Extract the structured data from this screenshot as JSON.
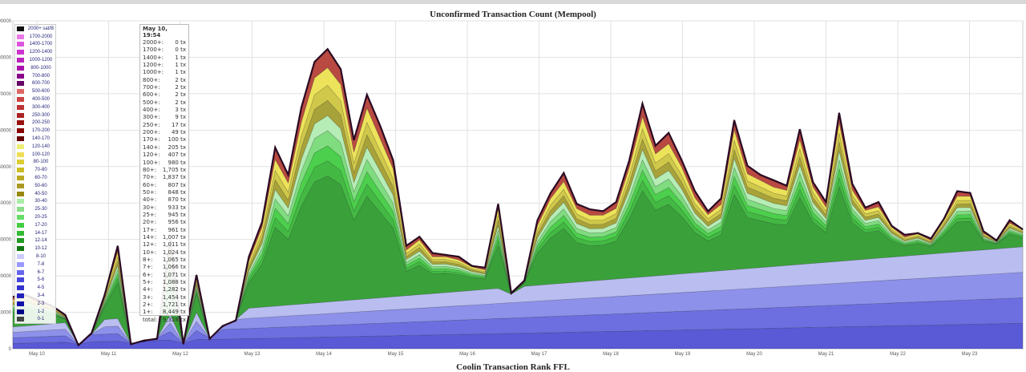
{
  "chart_data": {
    "type": "area",
    "title": "Unconfirmed Transaction Count (Mempool)",
    "footer_title": "Coolin Transaction Rank FFL",
    "x": [
      "May 10",
      "May 11",
      "May 12",
      "May 13",
      "May 14",
      "May 15",
      "May 16",
      "May 17",
      "May 18",
      "May 19",
      "May 20",
      "May 21",
      "May 22",
      "May 23"
    ],
    "y_ticks": [
      "0",
      "10000",
      "20000",
      "30000",
      "40000",
      "50000",
      "60000",
      "70000",
      "80000",
      "90000"
    ],
    "ylim": [
      0,
      90000
    ],
    "total_count": [
      14000,
      15000,
      13000,
      12000,
      9000,
      1200,
      4000,
      15000,
      28000,
      1500,
      2000,
      3000,
      30000,
      1500,
      20000,
      3000,
      6000,
      8000,
      25000,
      35000,
      55000,
      48000,
      66000,
      79000,
      82000,
      77000,
      57000,
      70000,
      61000,
      52000,
      28000,
      31000,
      26000,
      26000,
      25000,
      23000,
      22000,
      40000,
      15000,
      19000,
      35000,
      43000,
      48000,
      40000,
      38000,
      38000,
      40000,
      52000,
      67000,
      56000,
      59000,
      52000,
      43000,
      38000,
      41000,
      63000,
      50000,
      48000,
      46000,
      45000,
      60000,
      46000,
      40000,
      65000,
      45000,
      39000,
      40000,
      34000,
      31000,
      32000,
      30000,
      36000,
      43000,
      43000,
      32000,
      30000,
      35000,
      33000
    ],
    "stacked_fraction": [
      0.27,
      0.33,
      0.38,
      0.44,
      0.5,
      0.56,
      0.62,
      0.68,
      0.74,
      0.8,
      0.86,
      0.93,
      1.0
    ],
    "legend": [
      {
        "label": "2000+ sat/B",
        "color": "#111111"
      },
      {
        "label": "1700-2000",
        "color": "#e879e8"
      },
      {
        "label": "1400-1700",
        "color": "#dd55dd"
      },
      {
        "label": "1200-1400",
        "color": "#cc33cc"
      },
      {
        "label": "1000-1200",
        "color": "#bb22bb"
      },
      {
        "label": "800-1000",
        "color": "#aa11aa"
      },
      {
        "label": "700-800",
        "color": "#880088"
      },
      {
        "label": "600-700",
        "color": "#660066"
      },
      {
        "label": "500-600",
        "color": "#dd6666"
      },
      {
        "label": "400-500",
        "color": "#cc4444"
      },
      {
        "label": "300-400",
        "color": "#bb3333"
      },
      {
        "label": "250-300",
        "color": "#aa2222"
      },
      {
        "label": "200-250",
        "color": "#991111"
      },
      {
        "label": "170-200",
        "color": "#880000"
      },
      {
        "label": "140-170",
        "color": "#660000"
      },
      {
        "label": "120-140",
        "color": "#eeee77"
      },
      {
        "label": "100-120",
        "color": "#eedd55"
      },
      {
        "label": "80-100",
        "color": "#ddcc33"
      },
      {
        "label": "70-80",
        "color": "#ccbb22"
      },
      {
        "label": "60-70",
        "color": "#bbaa22"
      },
      {
        "label": "50-60",
        "color": "#aa9922"
      },
      {
        "label": "40-50",
        "color": "#998811"
      },
      {
        "label": "30-40",
        "color": "#aaeeaa"
      },
      {
        "label": "25-30",
        "color": "#88dd88"
      },
      {
        "label": "20-25",
        "color": "#66dd66"
      },
      {
        "label": "17-20",
        "color": "#44cc44"
      },
      {
        "label": "14-17",
        "color": "#33bb33"
      },
      {
        "label": "12-14",
        "color": "#229922"
      },
      {
        "label": "10-12",
        "color": "#117711"
      },
      {
        "label": "8-10",
        "color": "#ccccff"
      },
      {
        "label": "7-8",
        "color": "#9999ff"
      },
      {
        "label": "6-7",
        "color": "#6666ee"
      },
      {
        "label": "5-6",
        "color": "#4444dd"
      },
      {
        "label": "4-5",
        "color": "#3333cc"
      },
      {
        "label": "3-4",
        "color": "#2222bb"
      },
      {
        "label": "2-3",
        "color": "#1111aa"
      },
      {
        "label": "1-2",
        "color": "#000088"
      },
      {
        "label": "0-1",
        "color": "#444444"
      }
    ],
    "tooltip": {
      "title": "May 10, 19:54",
      "rows": [
        {
          "k": "2000+:",
          "v": "0 tx"
        },
        {
          "k": "1700+:",
          "v": "0 tx"
        },
        {
          "k": "1400+:",
          "v": "1 tx"
        },
        {
          "k": "1200+:",
          "v": "1 tx"
        },
        {
          "k": "1000+:",
          "v": "1 tx"
        },
        {
          "k": "800+:",
          "v": "2 tx"
        },
        {
          "k": "700+:",
          "v": "2 tx"
        },
        {
          "k": "600+:",
          "v": "2 tx"
        },
        {
          "k": "500+:",
          "v": "2 tx"
        },
        {
          "k": "400+:",
          "v": "3 tx"
        },
        {
          "k": "300+:",
          "v": "9 tx"
        },
        {
          "k": "250+:",
          "v": "17 tx"
        },
        {
          "k": "200+:",
          "v": "49 tx"
        },
        {
          "k": "170+:",
          "v": "100 tx"
        },
        {
          "k": "140+:",
          "v": "205 tx"
        },
        {
          "k": "120+:",
          "v": "407 tx"
        },
        {
          "k": "100+:",
          "v": "980 tx"
        },
        {
          "k": "80+:",
          "v": "1,705 tx"
        },
        {
          "k": "70+:",
          "v": "1,837 tx"
        },
        {
          "k": "60+:",
          "v": "807 tx"
        },
        {
          "k": "50+:",
          "v": "848 tx"
        },
        {
          "k": "40+:",
          "v": "870 tx"
        },
        {
          "k": "30+:",
          "v": "933 tx"
        },
        {
          "k": "25+:",
          "v": "945 tx"
        },
        {
          "k": "20+:",
          "v": "956 tx"
        },
        {
          "k": "17+:",
          "v": "961 tx"
        },
        {
          "k": "14+:",
          "v": "1,007 tx"
        },
        {
          "k": "12+:",
          "v": "1,011 tx"
        },
        {
          "k": "10+:",
          "v": "1,024 tx"
        },
        {
          "k": "8+:",
          "v": "1,065 tx"
        },
        {
          "k": "7+:",
          "v": "1,066 tx"
        },
        {
          "k": "6+:",
          "v": "1,071 tx"
        },
        {
          "k": "5+:",
          "v": "1,088 tx"
        },
        {
          "k": "4+:",
          "v": "1,282 tx"
        },
        {
          "k": "3+:",
          "v": "1,454 tx"
        },
        {
          "k": "2+:",
          "v": "1,721 tx"
        },
        {
          "k": "1+:",
          "v": "8,449 tx"
        },
        {
          "k": "total:",
          "v": "9,328 tx"
        }
      ]
    },
    "colors": {
      "base_blue": "#5a5ad6",
      "blue_light": "#b9bdf0",
      "green_dark": "#3aa13a",
      "green_mid": "#4ccf4c",
      "green_light": "#b6ecb6",
      "olive": "#a8a23a",
      "yellow": "#ece35a",
      "red": "#b84a42",
      "outline": "#2a0a22"
    }
  }
}
